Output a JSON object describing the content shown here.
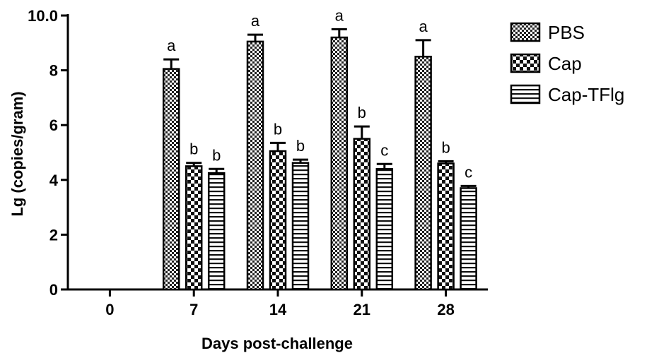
{
  "chart_data": {
    "type": "bar",
    "title": "",
    "xlabel": "Days post-challenge",
    "ylabel": "Lg (copies/gram)",
    "ylim": [
      0,
      10
    ],
    "yticks": [
      "0",
      "2",
      "4",
      "6",
      "8",
      "10.0"
    ],
    "categories": [
      "0",
      "7",
      "14",
      "21",
      "28"
    ],
    "legend_position": "top-right",
    "series": [
      {
        "name": "PBS",
        "pattern": "checker-fine",
        "values": [
          null,
          8.05,
          9.05,
          9.2,
          8.5
        ],
        "errors": [
          null,
          0.35,
          0.25,
          0.3,
          0.6
        ],
        "labels": [
          "",
          "a",
          "a",
          "a",
          "a"
        ]
      },
      {
        "name": "Cap",
        "pattern": "checker-coarse",
        "values": [
          null,
          4.5,
          5.05,
          5.5,
          4.6
        ],
        "errors": [
          null,
          0.12,
          0.3,
          0.45,
          0.08
        ],
        "labels": [
          "",
          "b",
          "b",
          "b",
          "b"
        ]
      },
      {
        "name": "Cap-TFlg",
        "pattern": "horizontal-stripes",
        "values": [
          null,
          4.25,
          4.62,
          4.4,
          3.7
        ],
        "errors": [
          null,
          0.15,
          0.12,
          0.18,
          0.08
        ],
        "labels": [
          "",
          "b",
          "b",
          "c",
          "c"
        ]
      }
    ]
  }
}
